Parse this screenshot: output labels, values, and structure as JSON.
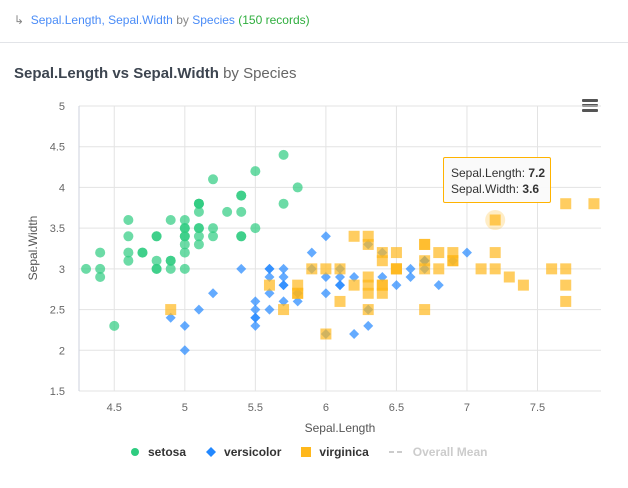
{
  "breadcrumb": {
    "arrow_icon": "return-arrow-icon",
    "fields": "Sepal.Length, Sepal.Width",
    "by": "by",
    "group": "Species",
    "count": "(150 records)"
  },
  "title": {
    "main": "Sepal.Length vs Sepal.Width",
    "by": "by Species"
  },
  "menu_icon": "hamburger-menu-icon",
  "tooltip": {
    "x_label": "Sepal.Length:",
    "x_value": "7.2",
    "y_label": "Sepal.Width:",
    "y_value": "3.6"
  },
  "legend": [
    {
      "name": "setosa",
      "color": "#2ecc80",
      "marker": "circle"
    },
    {
      "name": "versicolor",
      "color": "#2288ff",
      "marker": "diamond"
    },
    {
      "name": "virginica",
      "color": "#ffb81c",
      "marker": "square"
    },
    {
      "name": "Overall Mean",
      "color": "#cccccc",
      "marker": "dashed-line",
      "hidden": true
    }
  ],
  "chart_data": {
    "type": "scatter",
    "xlabel": "Sepal.Length",
    "ylabel": "Sepal.Width",
    "xlim": [
      4.25,
      7.95
    ],
    "ylim": [
      1.5,
      5
    ],
    "xticks": [
      "4.5",
      "5",
      "5.5",
      "6",
      "6.5",
      "7",
      "7.5"
    ],
    "yticks": [
      "1.5",
      "2",
      "2.5",
      "3",
      "3.5",
      "4",
      "4.5",
      "5"
    ],
    "grid": true,
    "legend_position": "bottom",
    "series": [
      {
        "name": "setosa",
        "points": [
          [
            5.1,
            3.5
          ],
          [
            4.9,
            3.0
          ],
          [
            4.7,
            3.2
          ],
          [
            4.6,
            3.1
          ],
          [
            5.0,
            3.6
          ],
          [
            5.4,
            3.9
          ],
          [
            4.6,
            3.4
          ],
          [
            5.0,
            3.4
          ],
          [
            4.4,
            2.9
          ],
          [
            4.9,
            3.1
          ],
          [
            5.4,
            3.7
          ],
          [
            4.8,
            3.4
          ],
          [
            4.8,
            3.0
          ],
          [
            4.3,
            3.0
          ],
          [
            5.8,
            4.0
          ],
          [
            5.7,
            4.4
          ],
          [
            5.4,
            3.9
          ],
          [
            5.1,
            3.5
          ],
          [
            5.7,
            3.8
          ],
          [
            5.1,
            3.8
          ],
          [
            5.4,
            3.4
          ],
          [
            5.1,
            3.7
          ],
          [
            4.6,
            3.6
          ],
          [
            5.1,
            3.3
          ],
          [
            4.8,
            3.4
          ],
          [
            5.0,
            3.0
          ],
          [
            5.0,
            3.4
          ],
          [
            5.2,
            3.5
          ],
          [
            5.2,
            3.4
          ],
          [
            4.7,
            3.2
          ],
          [
            4.8,
            3.1
          ],
          [
            5.4,
            3.4
          ],
          [
            5.2,
            4.1
          ],
          [
            5.5,
            4.2
          ],
          [
            4.9,
            3.1
          ],
          [
            5.0,
            3.2
          ],
          [
            5.5,
            3.5
          ],
          [
            4.9,
            3.6
          ],
          [
            4.4,
            3.0
          ],
          [
            5.1,
            3.4
          ],
          [
            5.0,
            3.5
          ],
          [
            4.5,
            2.3
          ],
          [
            4.4,
            3.2
          ],
          [
            5.0,
            3.5
          ],
          [
            5.1,
            3.8
          ],
          [
            4.8,
            3.0
          ],
          [
            5.1,
            3.8
          ],
          [
            4.6,
            3.2
          ],
          [
            5.3,
            3.7
          ],
          [
            5.0,
            3.3
          ]
        ]
      },
      {
        "name": "versicolor",
        "points": [
          [
            7.0,
            3.2
          ],
          [
            6.4,
            3.2
          ],
          [
            6.9,
            3.1
          ],
          [
            5.5,
            2.3
          ],
          [
            6.5,
            2.8
          ],
          [
            5.7,
            2.8
          ],
          [
            6.3,
            3.3
          ],
          [
            4.9,
            2.4
          ],
          [
            6.6,
            2.9
          ],
          [
            5.2,
            2.7
          ],
          [
            5.0,
            2.0
          ],
          [
            5.9,
            3.0
          ],
          [
            6.0,
            2.2
          ],
          [
            6.1,
            2.9
          ],
          [
            5.6,
            2.9
          ],
          [
            6.7,
            3.1
          ],
          [
            5.6,
            3.0
          ],
          [
            5.8,
            2.7
          ],
          [
            6.2,
            2.2
          ],
          [
            5.6,
            2.5
          ],
          [
            5.9,
            3.2
          ],
          [
            6.1,
            2.8
          ],
          [
            6.3,
            2.5
          ],
          [
            6.1,
            2.8
          ],
          [
            6.4,
            2.9
          ],
          [
            6.6,
            3.0
          ],
          [
            6.8,
            2.8
          ],
          [
            6.7,
            3.0
          ],
          [
            6.0,
            2.9
          ],
          [
            5.7,
            2.6
          ],
          [
            5.5,
            2.4
          ],
          [
            5.5,
            2.4
          ],
          [
            5.8,
            2.7
          ],
          [
            6.0,
            2.7
          ],
          [
            5.4,
            3.0
          ],
          [
            6.0,
            3.4
          ],
          [
            6.7,
            3.1
          ],
          [
            6.3,
            2.3
          ],
          [
            5.6,
            3.0
          ],
          [
            5.5,
            2.5
          ],
          [
            5.5,
            2.6
          ],
          [
            6.1,
            3.0
          ],
          [
            5.8,
            2.6
          ],
          [
            5.0,
            2.3
          ],
          [
            5.6,
            2.7
          ],
          [
            5.7,
            3.0
          ],
          [
            5.7,
            2.9
          ],
          [
            6.2,
            2.9
          ],
          [
            5.1,
            2.5
          ],
          [
            5.7,
            2.8
          ]
        ]
      },
      {
        "name": "virginica",
        "points": [
          [
            6.3,
            3.3
          ],
          [
            5.8,
            2.7
          ],
          [
            7.1,
            3.0
          ],
          [
            6.3,
            2.9
          ],
          [
            6.5,
            3.0
          ],
          [
            7.6,
            3.0
          ],
          [
            4.9,
            2.5
          ],
          [
            7.3,
            2.9
          ],
          [
            6.7,
            2.5
          ],
          [
            7.2,
            3.6
          ],
          [
            6.5,
            3.2
          ],
          [
            6.4,
            2.7
          ],
          [
            6.8,
            3.0
          ],
          [
            5.7,
            2.5
          ],
          [
            5.8,
            2.8
          ],
          [
            6.4,
            3.2
          ],
          [
            6.5,
            3.0
          ],
          [
            7.7,
            3.8
          ],
          [
            7.7,
            2.6
          ],
          [
            6.0,
            2.2
          ],
          [
            6.9,
            3.2
          ],
          [
            5.6,
            2.8
          ],
          [
            7.7,
            2.8
          ],
          [
            6.3,
            2.7
          ],
          [
            6.7,
            3.3
          ],
          [
            7.2,
            3.2
          ],
          [
            6.2,
            2.8
          ],
          [
            6.1,
            3.0
          ],
          [
            6.4,
            2.8
          ],
          [
            7.2,
            3.0
          ],
          [
            7.4,
            2.8
          ],
          [
            7.9,
            3.8
          ],
          [
            6.4,
            2.8
          ],
          [
            6.3,
            2.8
          ],
          [
            6.1,
            2.6
          ],
          [
            7.7,
            3.0
          ],
          [
            6.3,
            3.4
          ],
          [
            6.4,
            3.1
          ],
          [
            6.0,
            3.0
          ],
          [
            6.9,
            3.1
          ],
          [
            6.7,
            3.1
          ],
          [
            6.9,
            3.1
          ],
          [
            5.8,
            2.7
          ],
          [
            6.8,
            3.2
          ],
          [
            6.7,
            3.3
          ],
          [
            6.7,
            3.0
          ],
          [
            6.3,
            2.5
          ],
          [
            6.5,
            3.0
          ],
          [
            6.2,
            3.4
          ],
          [
            5.9,
            3.0
          ]
        ]
      }
    ],
    "highlighted_point": {
      "series": "virginica",
      "x": 7.2,
      "y": 3.6
    }
  }
}
